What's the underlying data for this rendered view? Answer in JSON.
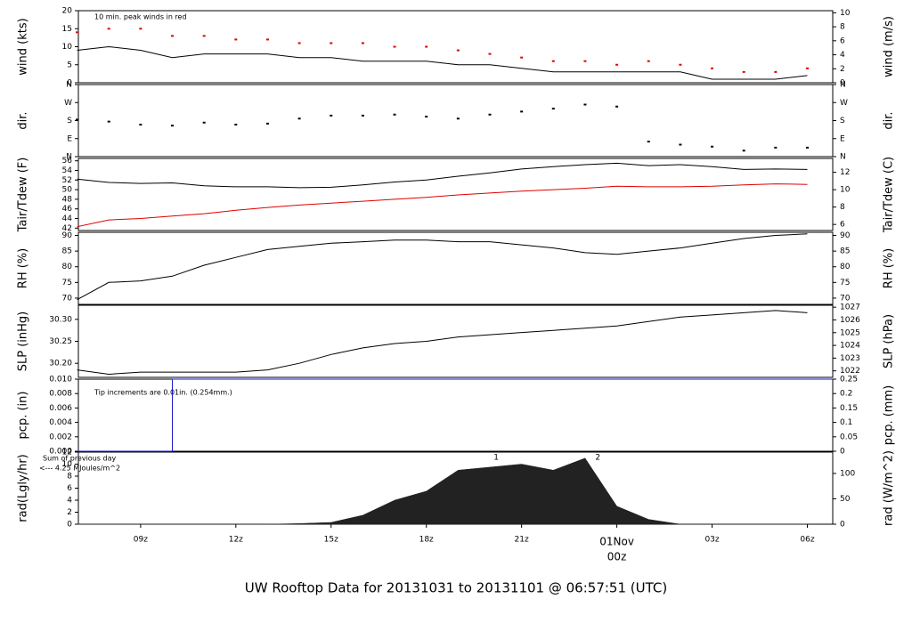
{
  "title": "UW Rooftop Data for 20131031  to  20131101 @ 06:57:51  (UTC)",
  "title_color": "#1a1acc",
  "time_axis": {
    "x": [
      7,
      8,
      9,
      10,
      11,
      12,
      13,
      14,
      15,
      16,
      17,
      18,
      19,
      20,
      21,
      22,
      23,
      24,
      25,
      26,
      27,
      28,
      29,
      30
    ],
    "xlim": [
      7.04,
      30.8
    ],
    "xticks": [
      {
        "value": 9,
        "label": "09z"
      },
      {
        "value": 12,
        "label": "12z"
      },
      {
        "value": 15,
        "label": "15z"
      },
      {
        "value": 18,
        "label": "18z"
      },
      {
        "value": 21,
        "label": "21z"
      },
      {
        "value": 24,
        "label": "00z"
      },
      {
        "value": 27,
        "label": "03z"
      },
      {
        "value": 30,
        "label": "06z"
      }
    ],
    "date_label": "01Nov",
    "date_color": "#e00000"
  },
  "chart_data": [
    {
      "type": "line",
      "ylabel": "wind (kts)",
      "y2label": "wind (m/s)",
      "ylim": [
        0,
        20
      ],
      "yticks": [
        0,
        5,
        10,
        15,
        20
      ],
      "y2lim": [
        0,
        10.3
      ],
      "y2ticks": [
        0,
        2,
        4,
        6,
        8,
        10
      ],
      "annotations": [
        {
          "text": "10 min. peak winds in red",
          "color": "#e00000"
        }
      ],
      "series": [
        {
          "type": "line",
          "color": "#000000",
          "values": [
            9,
            10,
            9,
            7,
            8,
            8,
            8,
            7,
            7,
            6,
            6,
            6,
            5,
            5,
            4,
            3,
            3,
            3,
            3,
            3,
            1,
            1,
            1,
            2
          ]
        },
        {
          "type": "dots",
          "color": "#e00000",
          "values": [
            14,
            15,
            15,
            13,
            13,
            12,
            12,
            11,
            11,
            11,
            10,
            10,
            9,
            8,
            7,
            6,
            6,
            5,
            6,
            5,
            4,
            3,
            3,
            4
          ]
        }
      ]
    },
    {
      "type": "line",
      "ylabel": "dir.",
      "y2label": "dir.",
      "ylim": [
        0,
        360
      ],
      "yticks": [
        {
          "value": 0,
          "label": "N"
        },
        {
          "value": 90,
          "label": "E"
        },
        {
          "value": 180,
          "label": "S"
        },
        {
          "value": 270,
          "label": "W"
        },
        {
          "value": 360,
          "label": "N"
        }
      ],
      "y2lim": [
        0,
        360
      ],
      "y2ticks": [
        {
          "value": 0,
          "label": "N"
        },
        {
          "value": 90,
          "label": "E"
        },
        {
          "value": 180,
          "label": "S"
        },
        {
          "value": 270,
          "label": "W"
        },
        {
          "value": 360,
          "label": "N"
        }
      ],
      "series": [
        {
          "type": "dots",
          "color": "#000000",
          "values": [
            185,
            175,
            160,
            155,
            170,
            160,
            165,
            190,
            205,
            205,
            210,
            200,
            190,
            210,
            225,
            240,
            260,
            250,
            75,
            60,
            50,
            30,
            45,
            45
          ]
        }
      ]
    },
    {
      "type": "line",
      "ylabel": "Tair/Tdew (F)",
      "y2label": "Tair/Tdew (C)",
      "ylim": [
        41.5,
        56.5
      ],
      "yticks": [
        42,
        44,
        46,
        48,
        50,
        52,
        54,
        56
      ],
      "y2lim": [
        5.3,
        13.6
      ],
      "y2ticks": [
        6,
        8,
        10,
        12
      ],
      "series": [
        {
          "type": "line",
          "color": "#000000",
          "values": [
            52.2,
            51.5,
            51.3,
            51.4,
            50.8,
            50.6,
            50.6,
            50.4,
            50.5,
            51.0,
            51.6,
            52,
            52.8,
            53.5,
            54.3,
            54.8,
            55.2,
            55.5,
            55.0,
            55.2,
            54.8,
            54.2,
            54.3,
            54.2
          ]
        },
        {
          "type": "line",
          "color": "#e00000",
          "values": [
            42.3,
            43.7,
            44,
            44.5,
            45,
            45.7,
            46.3,
            46.8,
            47.2,
            47.6,
            48,
            48.4,
            48.9,
            49.3,
            49.7,
            50,
            50.3,
            50.7,
            50.6,
            50.6,
            50.7,
            51,
            51.2,
            51.1
          ]
        }
      ]
    },
    {
      "type": "line",
      "ylabel": "RH (%)",
      "y2label": "RH (%)",
      "ylim": [
        68,
        91
      ],
      "yticks": [
        70,
        75,
        80,
        85,
        90
      ],
      "y2lim": [
        68,
        91
      ],
      "y2ticks": [
        70,
        75,
        80,
        85,
        90
      ],
      "series": [
        {
          "type": "line",
          "color": "#000000",
          "values": [
            69.5,
            75,
            75.5,
            77,
            80.5,
            83,
            85.5,
            86.5,
            87.5,
            88,
            88.5,
            88.5,
            88,
            88,
            87,
            86,
            84.5,
            84,
            85,
            86,
            87.5,
            89,
            90,
            90.5
          ]
        }
      ]
    },
    {
      "type": "line",
      "ylabel": "SLP (inHg)",
      "y2label": "SLP (hPa)",
      "ylim": [
        30.168,
        30.332
      ],
      "yticks": [
        {
          "value": 30.2,
          "label": "30.20"
        },
        30.25,
        {
          "value": 30.3,
          "label": "30.30"
        }
      ],
      "y2lim": [
        1021.49,
        1027.15
      ],
      "y2ticks": [
        1022,
        1023,
        1024,
        1025,
        1026,
        1027
      ],
      "series": [
        {
          "type": "line",
          "color": "#000000",
          "values": [
            30.185,
            30.175,
            30.18,
            30.18,
            30.18,
            30.18,
            30.185,
            30.2,
            30.22,
            30.235,
            30.245,
            30.25,
            30.26,
            30.265,
            30.27,
            30.275,
            30.28,
            30.285,
            30.295,
            30.305,
            30.31,
            30.315,
            30.32,
            30.315
          ]
        }
      ]
    },
    {
      "type": "line",
      "ylabel": "pcp. (in)",
      "y2label": "pcp. (mm)",
      "ylim": [
        0,
        0.01
      ],
      "yticks": [
        {
          "value": 0,
          "label": "0.000"
        },
        {
          "value": 0.002,
          "label": "0.002"
        },
        {
          "value": 0.004,
          "label": "0.004"
        },
        {
          "value": 0.006,
          "label": "0.006"
        },
        {
          "value": 0.008,
          "label": "0.008"
        },
        {
          "value": 0.01,
          "label": "0.010"
        }
      ],
      "y2lim": [
        0,
        0.25
      ],
      "y2ticks": [
        0,
        0.05,
        0.1,
        0.15,
        0.2,
        0.25
      ],
      "annotations": [
        {
          "text": "Tip increments are 0.01in. (0.254mm.)",
          "color": "#1a1acc"
        }
      ],
      "series": [
        {
          "type": "step",
          "color": "#1a1acc",
          "values": [
            0,
            0,
            0,
            0.01,
            0.01,
            0.01,
            0.01,
            0.01,
            0.01,
            0.01,
            0.01,
            0.01,
            0.01,
            0.01,
            0.01,
            0.01,
            0.01,
            0.01,
            0.01,
            0.01,
            0.01,
            0.01,
            0.01,
            0.01
          ]
        }
      ]
    },
    {
      "type": "line",
      "ylabel": "rad(Lgly/hr)",
      "y2label": "rad (W/m^2)",
      "ylim": [
        0,
        12
      ],
      "yticks": [
        0,
        2,
        4,
        6,
        8,
        10,
        12
      ],
      "y2lim": [
        0,
        142
      ],
      "y2ticks": [
        0,
        50,
        100
      ],
      "annotations": [
        {
          "text": "Sum of previous day",
          "color": "#9a20c0"
        },
        {
          "text": "<--- 4.25 MJoules/m^2",
          "color": "#9a20c0"
        }
      ],
      "markers": [
        {
          "x": 20.2,
          "label": "1"
        },
        {
          "x": 23.4,
          "label": "2"
        }
      ],
      "marker_color": "#9a20c0",
      "series": [
        {
          "type": "area",
          "color": "#222222",
          "values": [
            0,
            0,
            0,
            0,
            0,
            0,
            0,
            0.1,
            0.3,
            1.5,
            4,
            5.5,
            9,
            9.5,
            10,
            9,
            11,
            3,
            0.8,
            0,
            0,
            0,
            0,
            0
          ]
        }
      ]
    }
  ]
}
